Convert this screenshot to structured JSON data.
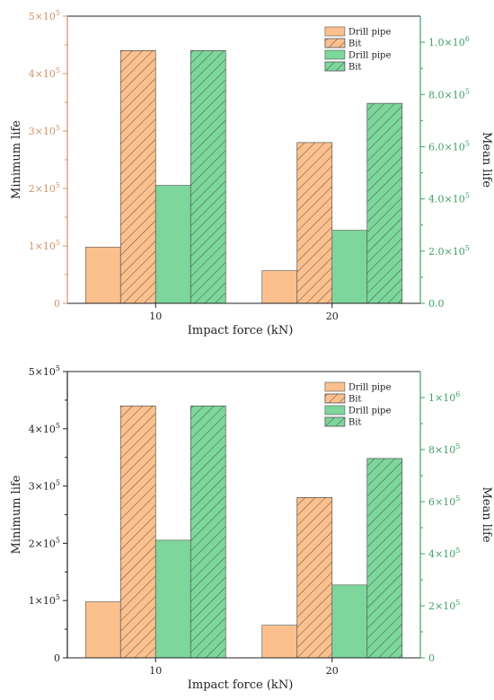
{
  "charts": [
    {
      "type": "bar",
      "categories": [
        "10",
        "20"
      ],
      "xlabel": "Impact force (kN)",
      "ylabel_left": "Minimum life",
      "ylabel_right": "Mean life",
      "left_axis": {
        "range": [
          0,
          500000
        ],
        "ticks": [
          {
            "value": 0,
            "base": "0",
            "exp": ""
          },
          {
            "value": 100000,
            "base": "1×10",
            "exp": "5"
          },
          {
            "value": 200000,
            "base": "2×10",
            "exp": "5"
          },
          {
            "value": 300000,
            "base": "3×10",
            "exp": "5"
          },
          {
            "value": 400000,
            "base": "4×10",
            "exp": "5"
          },
          {
            "value": 500000,
            "base": "5×10",
            "exp": "5"
          }
        ]
      },
      "right_axis": {
        "range": [
          0,
          1100000
        ],
        "ticks": [
          {
            "value": 0,
            "base": "0.0",
            "exp": ""
          },
          {
            "value": 200000,
            "base": "2.0×10",
            "exp": "5"
          },
          {
            "value": 400000,
            "base": "4.0×10",
            "exp": "5"
          },
          {
            "value": 600000,
            "base": "6.0×10",
            "exp": "5"
          },
          {
            "value": 800000,
            "base": "8.0×10",
            "exp": "5"
          },
          {
            "value": 1000000,
            "base": "1.0×10",
            "exp": "6"
          }
        ]
      },
      "series": [
        {
          "name": "Drill pipe",
          "axis": "left",
          "values": [
            98000,
            57000
          ],
          "color": "#fbc08d",
          "hatch": false
        },
        {
          "name": "Bit",
          "axis": "left",
          "values": [
            440000,
            280000
          ],
          "color": "#fbc08d",
          "hatch": true
        },
        {
          "name": "Drill pipe",
          "axis": "right",
          "values": [
            452000,
            280000
          ],
          "color": "#7dd69c",
          "hatch": false
        },
        {
          "name": "Bit",
          "axis": "right",
          "values": [
            968000,
            766000
          ],
          "color": "#7dd69c",
          "hatch": true
        }
      ],
      "left_axis_color": "#d4906a",
      "right_axis_color": "#3fa068",
      "legend_position": "top-right",
      "grid": false
    },
    {
      "type": "bar",
      "categories": [
        "10",
        "20"
      ],
      "xlabel": "Impact force (kN)",
      "ylabel_left": "Minimum life",
      "ylabel_right": "Mean life",
      "left_axis": {
        "range": [
          0,
          500000
        ],
        "ticks": [
          {
            "value": 0,
            "base": "0",
            "exp": ""
          },
          {
            "value": 100000,
            "base": "1×10",
            "exp": "5"
          },
          {
            "value": 200000,
            "base": "2×10",
            "exp": "5"
          },
          {
            "value": 300000,
            "base": "3×10",
            "exp": "5"
          },
          {
            "value": 400000,
            "base": "4×10",
            "exp": "5"
          },
          {
            "value": 500000,
            "base": "5×10",
            "exp": "5"
          }
        ]
      },
      "right_axis": {
        "range": [
          0,
          1100000
        ],
        "ticks": [
          {
            "value": 0,
            "base": "0",
            "exp": ""
          },
          {
            "value": 200000,
            "base": "2×10",
            "exp": "5"
          },
          {
            "value": 400000,
            "base": "4×10",
            "exp": "5"
          },
          {
            "value": 600000,
            "base": "6×10",
            "exp": "5"
          },
          {
            "value": 800000,
            "base": "8×10",
            "exp": "5"
          },
          {
            "value": 1000000,
            "base": "1×10",
            "exp": "6"
          }
        ]
      },
      "series": [
        {
          "name": "Drill pipe",
          "axis": "left",
          "values": [
            98000,
            57000
          ],
          "color": "#fbc08d",
          "hatch": false
        },
        {
          "name": "Bit",
          "axis": "left",
          "values": [
            440000,
            280000
          ],
          "color": "#fbc08d",
          "hatch": true
        },
        {
          "name": "Drill pipe",
          "axis": "right",
          "values": [
            452000,
            280000
          ],
          "color": "#7dd69c",
          "hatch": false
        },
        {
          "name": "Bit",
          "axis": "right",
          "values": [
            968000,
            766000
          ],
          "color": "#7dd69c",
          "hatch": true
        }
      ],
      "left_axis_color": "#222222",
      "right_axis_color": "#3fa068",
      "legend_position": "top-right",
      "grid": false
    }
  ]
}
